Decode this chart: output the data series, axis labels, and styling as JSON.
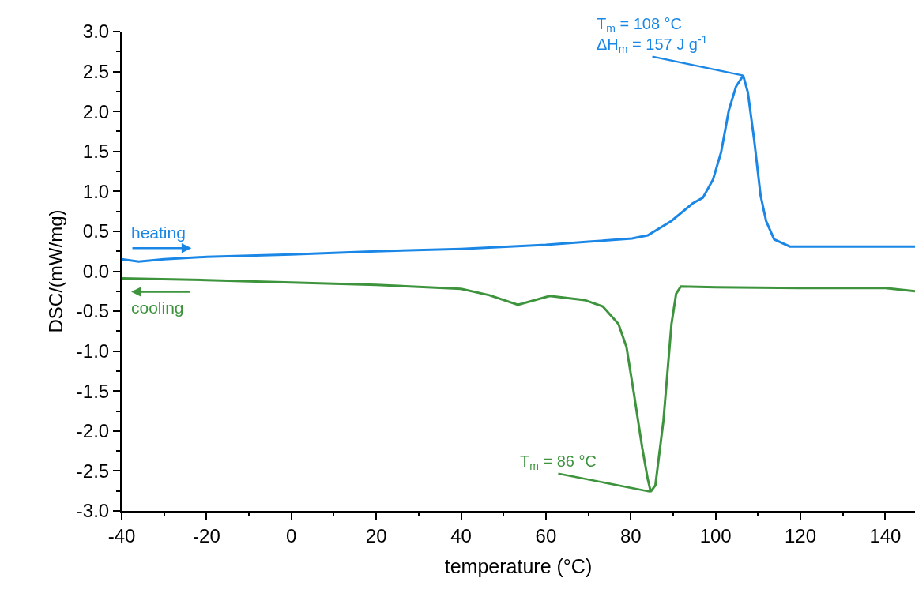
{
  "chart_data": {
    "type": "line",
    "xlabel": "temperature (°C)",
    "ylabel": "DSC/(mW/mg)",
    "xlim": [
      -40,
      147
    ],
    "ylim": [
      -3,
      3
    ],
    "xticks": [
      -40,
      {
        "value": -30,
        "label": null
      },
      -20,
      {
        "value": -10,
        "label": null
      },
      0,
      {
        "value": 10,
        "label": null
      },
      20,
      {
        "value": 30,
        "label": null
      },
      40,
      {
        "value": 50,
        "label": null
      },
      60,
      {
        "value": 70,
        "label": null
      },
      80,
      {
        "value": 90,
        "label": null
      },
      100,
      {
        "value": 110,
        "label": null
      },
      120,
      {
        "value": 130,
        "label": null
      },
      140
    ],
    "yticks": [
      {
        "value": -3,
        "label": "-3.0"
      },
      {
        "value": -2.75,
        "label": null
      },
      {
        "value": -2.5,
        "label": "-2.5"
      },
      {
        "value": -2.25,
        "label": null
      },
      {
        "value": -2,
        "label": "-2.0"
      },
      {
        "value": -1.75,
        "label": null
      },
      {
        "value": -1.5,
        "label": "-1.5"
      },
      {
        "value": -1.25,
        "label": null
      },
      {
        "value": -1,
        "label": "-1.0"
      },
      {
        "value": -0.75,
        "label": null
      },
      {
        "value": -0.5,
        "label": "-0.5"
      },
      {
        "value": -0.25,
        "label": null
      },
      {
        "value": 0,
        "label": "0.0"
      },
      {
        "value": 0.25,
        "label": null
      },
      {
        "value": 0.5,
        "label": "0.5"
      },
      {
        "value": 0.75,
        "label": null
      },
      {
        "value": 1,
        "label": "1.0"
      },
      {
        "value": 1.25,
        "label": null
      },
      {
        "value": 1.5,
        "label": "1.5"
      },
      {
        "value": 1.75,
        "label": null
      },
      {
        "value": 2,
        "label": "2.0"
      },
      {
        "value": 2.25,
        "label": null
      },
      {
        "value": 2.5,
        "label": "2.5"
      },
      {
        "value": 2.75,
        "label": null
      },
      {
        "value": 3,
        "label": "3.0"
      }
    ],
    "grid": false,
    "marker": "none",
    "line_style": "solid",
    "series": [
      {
        "color": "#1a87e6",
        "x": [
          -40,
          -36,
          -30,
          -20,
          0,
          20,
          40,
          60,
          70,
          80.3,
          84,
          89.6,
          94.6,
          97,
          99.4,
          101.3,
          103.1,
          104.8,
          106.5,
          107.6,
          109.1,
          110.6,
          111.9,
          113.8,
          117.5,
          130,
          147
        ],
        "values": [
          0.15,
          0.12,
          0.15,
          0.18,
          0.21,
          0.25,
          0.28,
          0.33,
          0.37,
          0.41,
          0.45,
          0.63,
          0.85,
          0.92,
          1.15,
          1.49,
          2.01,
          2.31,
          2.45,
          2.24,
          1.64,
          0.95,
          0.63,
          0.4,
          0.31,
          0.31,
          0.31
        ]
      },
      {
        "color": "#3d943d",
        "x": [
          -40,
          -20,
          0,
          20,
          40,
          46.7,
          53.4,
          60.9,
          69.1,
          73.4,
          77.1,
          79,
          80.8,
          82.7,
          84,
          84.7,
          85.8,
          87.7,
          89.6,
          90.7,
          91.8,
          100,
          120,
          140,
          147
        ],
        "values": [
          -0.09,
          -0.11,
          -0.14,
          -0.17,
          -0.22,
          -0.3,
          -0.42,
          -0.31,
          -0.36,
          -0.44,
          -0.66,
          -0.95,
          -1.55,
          -2.21,
          -2.6,
          -2.76,
          -2.68,
          -1.87,
          -0.66,
          -0.28,
          -0.19,
          -0.2,
          -0.21,
          -0.21,
          -0.25
        ]
      }
    ],
    "annotations": [
      "heating",
      "cooling",
      {
        "text": "T$_{m}$ = 108 °C\nΔH$_{m}$ = 157 J g$^{-1}$",
        "x": 106.5,
        "y": 2.45
      },
      {
        "text": "T$_{m}$ = 86 °C",
        "x": 84.7,
        "y": -2.76
      }
    ]
  }
}
